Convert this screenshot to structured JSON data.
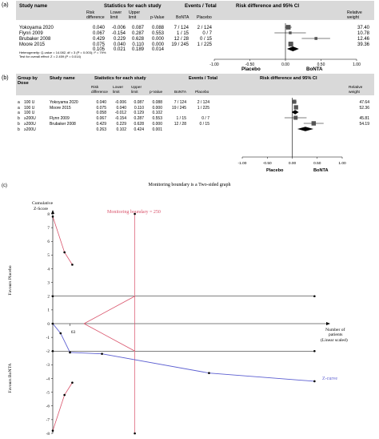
{
  "panel_a": {
    "label": "(a)",
    "headers": {
      "study_name": "Study name",
      "stats_group": "Statistics for each study",
      "events_group": "Events / Total",
      "ci_group": "Risk difference and 95% CI",
      "risk_diff": "Risk difference",
      "lower": "Lower limit",
      "upper": "Upper limit",
      "pvalue": "p-Value",
      "bonta": "BoNTA",
      "placebo": "Placebo",
      "weight": "Relative weight"
    },
    "rows": [
      {
        "study": "Yokoyama 2020",
        "rd": "0.040",
        "lo": "-0.006",
        "hi": "0.087",
        "p": "0.088",
        "bonta": "7 / 124",
        "placebo": "2 / 124",
        "weight": "37.40"
      },
      {
        "study": "Flynn 2009",
        "rd": "0.067",
        "lo": "-0.154",
        "hi": "0.287",
        "p": "0.553",
        "bonta": "1 / 15",
        "placebo": "0 / 7",
        "weight": "10.78"
      },
      {
        "study": "Brubaker 2008",
        "rd": "0.429",
        "lo": "0.229",
        "hi": "0.628",
        "p": "0.000",
        "bonta": "12 / 28",
        "placebo": "0 / 15",
        "weight": "12.46"
      },
      {
        "study": "Moore 2015",
        "rd": "0.075",
        "lo": "0.040",
        "hi": "0.110",
        "p": "0.000",
        "bonta": "19 / 245",
        "placebo": "1 / 225",
        "weight": "39.36"
      }
    ],
    "pooled": {
      "rd": "0.105",
      "lo": "0.021",
      "hi": "0.189",
      "p": "0.014"
    },
    "heterogeneity": "Heterogeneity: Q-value = 14.082, df = 3 (P = 0.003); I² = 79%",
    "overall_test": "Test for overall effect: Z = 2.459 (P = 0.014)",
    "axis_ticks": [
      "-1.00",
      "-0.50",
      "0.00",
      "0.50",
      "1.00"
    ],
    "favours_left": "Placebo",
    "favours_right": "BoNTA"
  },
  "panel_b": {
    "label": "(b)",
    "headers": {
      "group_by": "Group by",
      "dose": "Dose",
      "study_name": "Study name",
      "stats_group": "Statistics for each study",
      "events_group": "Events / Total",
      "ci_group": "Risk difference and 95% CI",
      "risk_diff": "Risk difference",
      "lower": "Lower limit",
      "upper": "Upper limit",
      "pvalue": "p-Value",
      "bonta": "BoNTA",
      "placebo": "Placebo",
      "weight": "Relative weight"
    },
    "rows": [
      {
        "id": "a",
        "dose": "100 U",
        "study": "Yokoyama 2020",
        "rd": "0.040",
        "lo": "-0.006",
        "hi": "0.087",
        "p": "0.088",
        "bonta": "7 / 124",
        "placebo": "2 / 124",
        "weight": "47.64"
      },
      {
        "id": "a",
        "dose": "100 U",
        "study": "Moore 2015",
        "rd": "0.075",
        "lo": "0.040",
        "hi": "0.110",
        "p": "0.000",
        "bonta": "19 / 245",
        "placebo": "1 / 225",
        "weight": "52.36"
      },
      {
        "id": "a",
        "dose": "100 U",
        "study": "",
        "rd": "0.058",
        "lo": "-0.012",
        "hi": "0.129",
        "p": "0.102",
        "bonta": "",
        "placebo": "",
        "weight": ""
      },
      {
        "id": "b",
        "dose": "≥200U",
        "study": "Flynn 2009",
        "rd": "0.067",
        "lo": "-0.154",
        "hi": "0.287",
        "p": "0.553",
        "bonta": "1 / 15",
        "placebo": "0 / 7",
        "weight": "45.81"
      },
      {
        "id": "b",
        "dose": "≥200U",
        "study": "Brubaker 2008",
        "rd": "0.429",
        "lo": "0.229",
        "hi": "0.628",
        "p": "0.000",
        "bonta": "12 / 28",
        "placebo": "0 / 15",
        "weight": "54.19"
      },
      {
        "id": "b",
        "dose": "≥200U",
        "study": "",
        "rd": "0.263",
        "lo": "0.102",
        "hi": "0.424",
        "p": "0.001",
        "bonta": "",
        "placebo": "",
        "weight": ""
      }
    ],
    "axis_ticks": [
      "-1.00",
      "-0.50",
      "0.00",
      "0.50",
      "1.00"
    ],
    "favours_left": "Placebo",
    "favours_right": "BoNTA"
  },
  "panel_c": {
    "label": "(c)",
    "title": "Monitoring boundary is a Two-sided graph",
    "ylabel_line1": "Cumulative",
    "ylabel_line2": "Z-Score",
    "boundary_label": "Monitoring boundary = 250",
    "favours_placebo": "Favours Placebo",
    "favours_bonta": "Favours BoNTA",
    "xlabel_line1": "Number of",
    "xlabel_line2": "patients",
    "xlabel_line3": "(Linear scaled)",
    "zcurve_label": "Z-curve",
    "x_tick_label": "63",
    "y_ticks": [
      "8",
      "7",
      "6",
      "5",
      "4",
      "3",
      "2",
      "1",
      "0",
      "-1",
      "-2",
      "-3",
      "-4",
      "-5",
      "-6",
      "-7",
      "-8"
    ],
    "colors": {
      "boundary": "#d9536b",
      "zcurve": "#5c5fd1",
      "grid": "#000000"
    }
  },
  "chart_data": [
    {
      "type": "forest",
      "title": "",
      "measure": "Risk difference",
      "studies": [
        "Yokoyama 2020",
        "Flynn 2009",
        "Brubaker 2008",
        "Moore 2015"
      ],
      "estimate": [
        0.04,
        0.067,
        0.429,
        0.075
      ],
      "lower": [
        -0.006,
        -0.154,
        0.229,
        0.04
      ],
      "upper": [
        0.087,
        0.287,
        0.628,
        0.11
      ],
      "weight": [
        37.4,
        10.78,
        12.46,
        39.36
      ],
      "pooled": {
        "estimate": 0.105,
        "lower": 0.021,
        "upper": 0.189
      },
      "xlim": [
        -1.0,
        1.0
      ]
    },
    {
      "type": "forest",
      "title": "",
      "measure": "Risk difference",
      "groups": [
        {
          "dose": "100 U",
          "studies": [
            "Yokoyama 2020",
            "Moore 2015"
          ],
          "estimate": [
            0.04,
            0.075
          ],
          "lower": [
            -0.006,
            0.04
          ],
          "upper": [
            0.087,
            0.11
          ],
          "weight": [
            47.64,
            52.36
          ],
          "pooled": {
            "estimate": 0.058,
            "lower": -0.012,
            "upper": 0.129
          }
        },
        {
          "dose": "≥200U",
          "studies": [
            "Flynn 2009",
            "Brubaker 2008"
          ],
          "estimate": [
            0.067,
            0.429
          ],
          "lower": [
            -0.154,
            0.229
          ],
          "upper": [
            0.287,
            0.628
          ],
          "weight": [
            45.81,
            54.19
          ],
          "pooled": {
            "estimate": 0.263,
            "lower": 0.102,
            "upper": 0.424
          }
        }
      ],
      "xlim": [
        -1.0,
        1.0
      ]
    },
    {
      "type": "line",
      "title": "Monitoring boundary is a Two-sided graph",
      "xlabel": "Number of patients (Linear scaled)",
      "ylabel": "Cumulative Z-Score",
      "ylim": [
        -8,
        8
      ],
      "xlim": [
        0,
        350
      ],
      "required_information_size": 250,
      "series": [
        {
          "name": "Z-curve",
          "x": [
            0,
            10,
            22,
            63,
            200,
            335
          ],
          "y": [
            0,
            -0.7,
            -2.1,
            -2.2,
            -3.6,
            -4.2
          ]
        },
        {
          "x": [
            0,
            15,
            25
          ],
          "y": [
            7.8,
            5.2,
            4.3
          ]
        },
        {
          "x": [
            0,
            15,
            25
          ],
          "y": [
            -7.8,
            -5.2,
            -4.3
          ]
        },
        {
          "x": [
            40,
            105
          ],
          "y": [
            0,
            2.0
          ]
        },
        {
          "x": [
            40,
            105
          ],
          "y": [
            0,
            -2.0
          ]
        },
        {
          "x": [
            105,
            105
          ],
          "y": [
            8,
            -8
          ]
        },
        {
          "x": [
            0,
            335
          ],
          "y": [
            2,
            2
          ]
        },
        {
          "x": [
            0,
            335
          ],
          "y": [
            -2,
            -2
          ]
        }
      ]
    }
  ]
}
